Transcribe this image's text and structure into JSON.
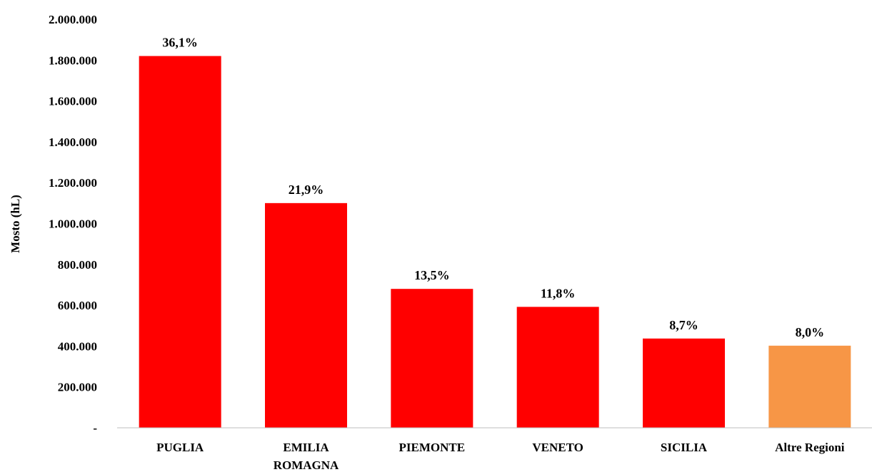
{
  "chart_data": {
    "type": "bar",
    "title": "",
    "xlabel": "",
    "ylabel": "Mosto (hL)",
    "ylim": [
      0,
      2000000
    ],
    "grid": false,
    "y_ticks": [
      "-",
      "200.000",
      "400.000",
      "600.000",
      "800.000",
      "1.000.000",
      "1.200.000",
      "1.400.000",
      "1.600.000",
      "1.800.000",
      "2.000.000"
    ],
    "categories": [
      [
        "PUGLIA"
      ],
      [
        "EMILIA",
        "ROMAGNA"
      ],
      [
        "PIEMONTE"
      ],
      [
        "VENETO"
      ],
      [
        "SICILIA"
      ],
      [
        "Altre Regioni"
      ]
    ],
    "values": [
      1820000,
      1100000,
      680000,
      592000,
      437000,
      402000
    ],
    "data_labels": [
      "36,1%",
      "21,9%",
      "13,5%",
      "11,8%",
      "8,7%",
      "8,0%"
    ],
    "colors": [
      "#ff0000",
      "#ff0000",
      "#ff0000",
      "#ff0000",
      "#ff0000",
      "#f79646"
    ]
  }
}
